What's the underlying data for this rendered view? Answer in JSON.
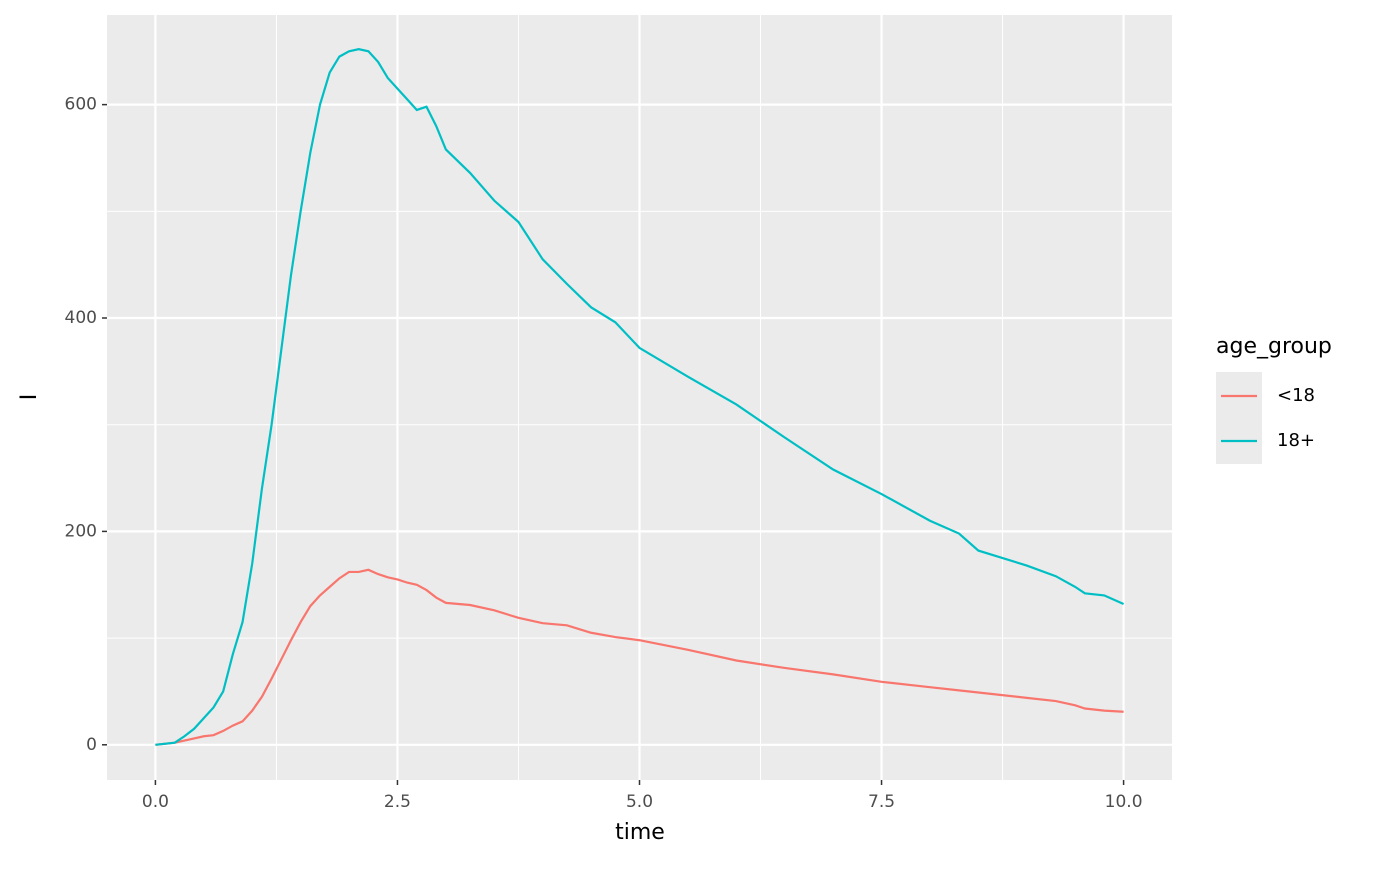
{
  "chart_data": {
    "type": "line",
    "x_label": "time",
    "y_label": "I",
    "x": [
      0,
      0.2,
      0.3,
      0.4,
      0.5,
      0.6,
      0.7,
      0.8,
      0.9,
      1.0,
      1.1,
      1.2,
      1.3,
      1.4,
      1.5,
      1.6,
      1.7,
      1.8,
      1.9,
      2.0,
      2.1,
      2.2,
      2.3,
      2.4,
      2.5,
      2.6,
      2.7,
      2.8,
      2.9,
      3.0,
      3.25,
      3.5,
      3.75,
      4.0,
      4.25,
      4.5,
      4.75,
      5.0,
      5.5,
      6.0,
      6.5,
      7.0,
      7.5,
      8.0,
      8.3,
      8.5,
      9.0,
      9.3,
      9.5,
      9.6,
      9.8,
      10.0
    ],
    "series": [
      {
        "name": "<18",
        "color": "#F8766D",
        "values": [
          0,
          2,
          4,
          6,
          8,
          9,
          13,
          18,
          22,
          32,
          45,
          62,
          80,
          98,
          115,
          130,
          140,
          148,
          156,
          162,
          162,
          164,
          160,
          157,
          155,
          152,
          150,
          145,
          138,
          133,
          131,
          126,
          119,
          114,
          112,
          105,
          101,
          98,
          89,
          79,
          72,
          66,
          59,
          54,
          51,
          49,
          44,
          41,
          37,
          34,
          32,
          31
        ]
      },
      {
        "name": "18+",
        "color": "#00BFC4",
        "values": [
          0,
          2,
          8,
          15,
          25,
          35,
          50,
          85,
          115,
          170,
          240,
          300,
          370,
          440,
          500,
          555,
          600,
          630,
          645,
          650,
          652,
          650,
          640,
          625,
          615,
          605,
          595,
          598,
          580,
          558,
          536,
          510,
          490,
          455,
          432,
          410,
          396,
          372,
          345,
          319,
          288,
          258,
          235,
          210,
          198,
          182,
          168,
          158,
          148,
          142,
          140,
          132
        ]
      }
    ],
    "legend_title": "age_group",
    "legend": "right",
    "xlim": [
      -0.5,
      10.5
    ],
    "ylim": [
      -33,
      684
    ],
    "xticks": [
      {
        "value": 0,
        "label": "0.0"
      },
      2.5,
      {
        "value": 5,
        "label": "5.0"
      },
      7.5,
      {
        "value": 10,
        "label": "10.0"
      }
    ],
    "yticks": [
      0,
      200,
      400,
      600
    ],
    "xminor": [
      1.25,
      3.75,
      6.25,
      8.75
    ],
    "yminor": [
      100,
      300,
      500
    ],
    "grid": true
  }
}
